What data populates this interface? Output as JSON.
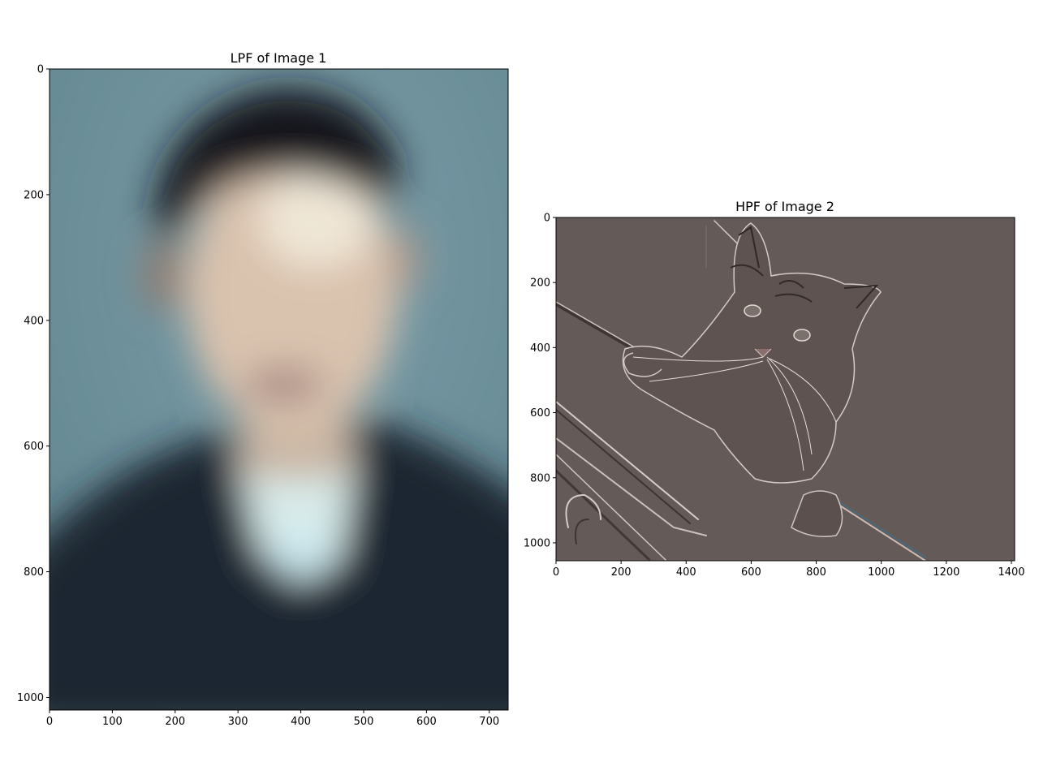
{
  "chart_data": [
    {
      "type": "image",
      "title": "LPF of Image 1",
      "xlim": [
        0,
        730
      ],
      "ylim": [
        1020,
        0
      ],
      "xticks": [
        0,
        100,
        200,
        300,
        400,
        500,
        600,
        700
      ],
      "yticks": [
        0,
        200,
        400,
        600,
        800,
        1000
      ],
      "image_subject": "blurred portrait of a man in a dark sweater against a blue-grey background",
      "colors": {
        "background": "#6f93a0",
        "hair": "#1a1c1f",
        "skin": "#d9bfa8",
        "sweater": "#1e2a33",
        "collar": "#cfe6ef"
      }
    },
    {
      "type": "image",
      "title": "HPF of Image 2",
      "xlim": [
        0,
        1410
      ],
      "ylim": [
        1055,
        0
      ],
      "xticks": [
        0,
        200,
        400,
        600,
        800,
        1000,
        1200,
        1400
      ],
      "yticks": [
        0,
        200,
        400,
        600,
        800,
        1000
      ],
      "image_subject": "high-pass filtered photo of a fluffy cat resting its paws on a ledge",
      "colors": {
        "background": "#625856",
        "edge_light": "#cfc6c2",
        "edge_dark": "#3d3533"
      }
    }
  ]
}
